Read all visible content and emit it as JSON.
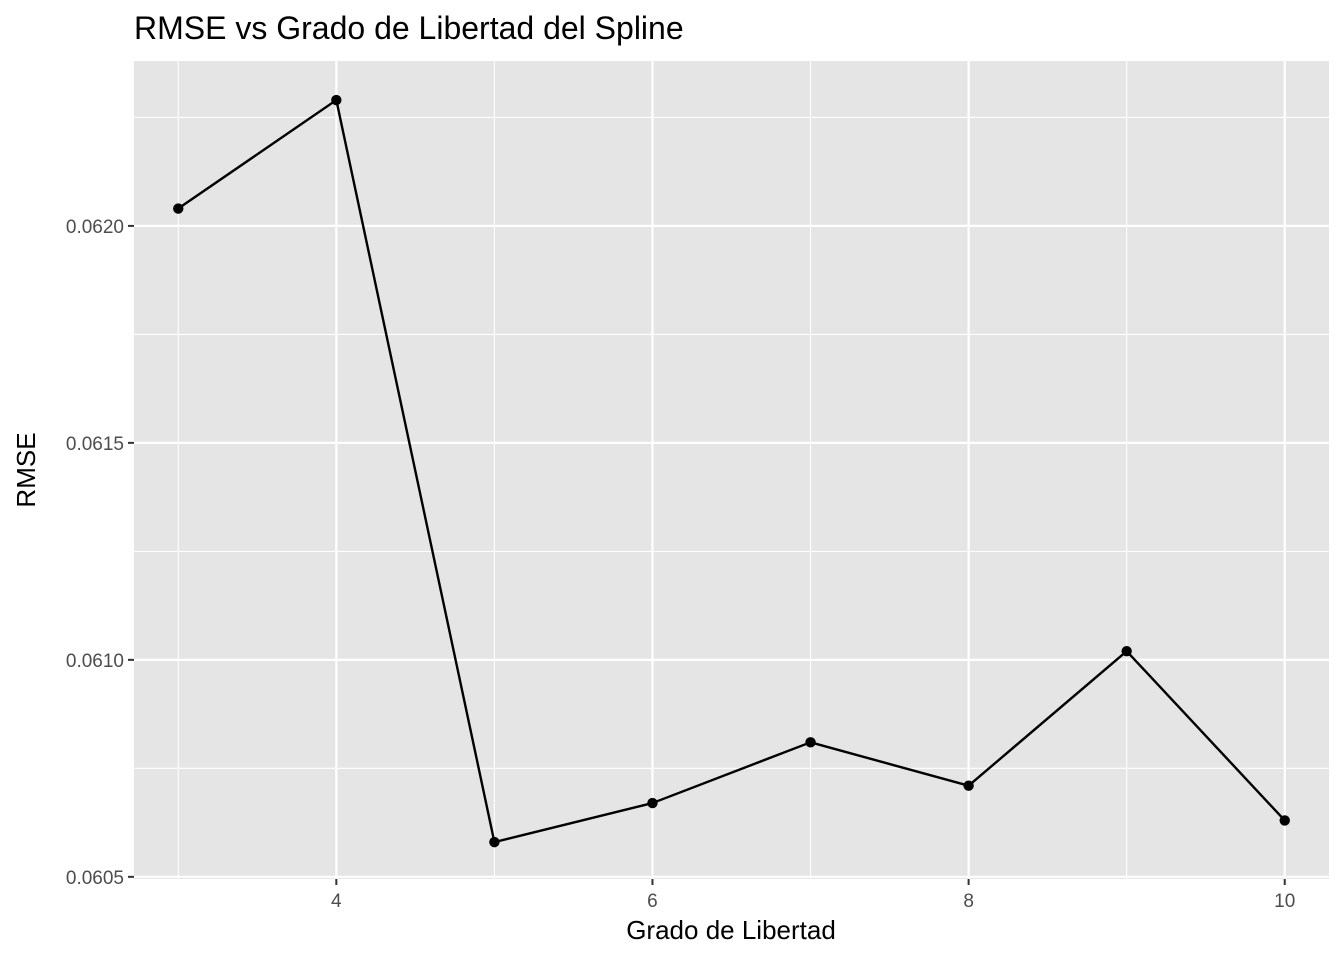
{
  "chart_data": {
    "type": "line",
    "title": "RMSE vs Grado de Libertad del Spline",
    "xlabel": "Grado de Libertad",
    "ylabel": "RMSE",
    "x": [
      3,
      4,
      5,
      6,
      7,
      8,
      9,
      10
    ],
    "y": [
      0.06204,
      0.06229,
      0.06058,
      0.06067,
      0.06081,
      0.06071,
      0.06102,
      0.06063
    ],
    "xlim": [
      2.72,
      10.28
    ],
    "ylim": [
      0.060495,
      0.06238
    ],
    "x_ticks": [
      4,
      6,
      8,
      10
    ],
    "x_tick_labels": [
      "4",
      "6",
      "8",
      "10"
    ],
    "y_ticks": [
      0.0605,
      0.061,
      0.0615,
      0.062
    ],
    "y_tick_labels": [
      "0.0605",
      "0.0610",
      "0.0615",
      "0.0620"
    ],
    "grid": true,
    "legend": "none",
    "colors": {
      "panel_background": "#e5e5e5",
      "grid": "#ffffff",
      "line": "#000000",
      "points": "#000000"
    }
  }
}
